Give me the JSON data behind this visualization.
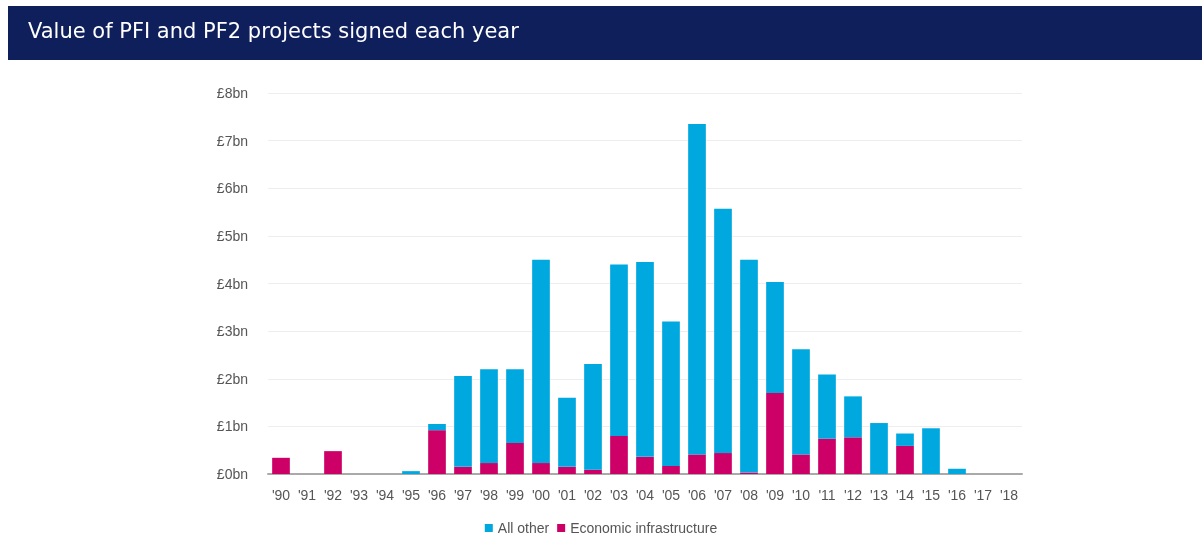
{
  "chart_data": {
    "type": "bar",
    "title": "Value of PFI and PF2 projects signed each year",
    "stacked": true,
    "categories": [
      "'90",
      "'91",
      "'92",
      "'93",
      "'94",
      "'95",
      "'96",
      "'97",
      "'98",
      "'99",
      "'00",
      "'01",
      "'02",
      "'03",
      "'04",
      "'05",
      "'06",
      "'07",
      "'08",
      "'09",
      "'10",
      "'11",
      "'12",
      "'13",
      "'14",
      "'15",
      "'16",
      "'17",
      "'18"
    ],
    "series": [
      {
        "name": "Economic infrastructure",
        "color": "#cc0066",
        "values": [
          0.34,
          0,
          0.48,
          0,
          0,
          0,
          0.92,
          0.15,
          0.23,
          0.65,
          0.23,
          0.15,
          0.09,
          0.8,
          0.36,
          0.17,
          0.41,
          0.44,
          0.03,
          1.7,
          0.41,
          0.74,
          0.77,
          0,
          0.59,
          0,
          0,
          0,
          0
        ]
      },
      {
        "name": "All other",
        "color": "#00a8e0",
        "values": [
          0,
          0,
          0,
          0,
          0,
          0.06,
          0.13,
          1.91,
          1.97,
          1.55,
          4.27,
          1.45,
          2.22,
          3.6,
          4.09,
          3.03,
          6.94,
          5.13,
          4.47,
          2.33,
          2.21,
          1.35,
          0.86,
          1.07,
          0.26,
          0.96,
          0.11,
          0,
          0
        ]
      }
    ],
    "ylim": [
      0,
      8
    ],
    "yticks": [
      {
        "value": 0,
        "label": "£0bn"
      },
      {
        "value": 1,
        "label": "£1bn"
      },
      {
        "value": 2,
        "label": "£2bn"
      },
      {
        "value": 3,
        "label": "£3bn"
      },
      {
        "value": 4,
        "label": "£4bn"
      },
      {
        "value": 5,
        "label": "£5bn"
      },
      {
        "value": 6,
        "label": "£6bn"
      },
      {
        "value": 7,
        "label": "£7bn"
      },
      {
        "value": 8,
        "label": "£8bn"
      }
    ],
    "grid": "y",
    "legend": "bottom"
  }
}
